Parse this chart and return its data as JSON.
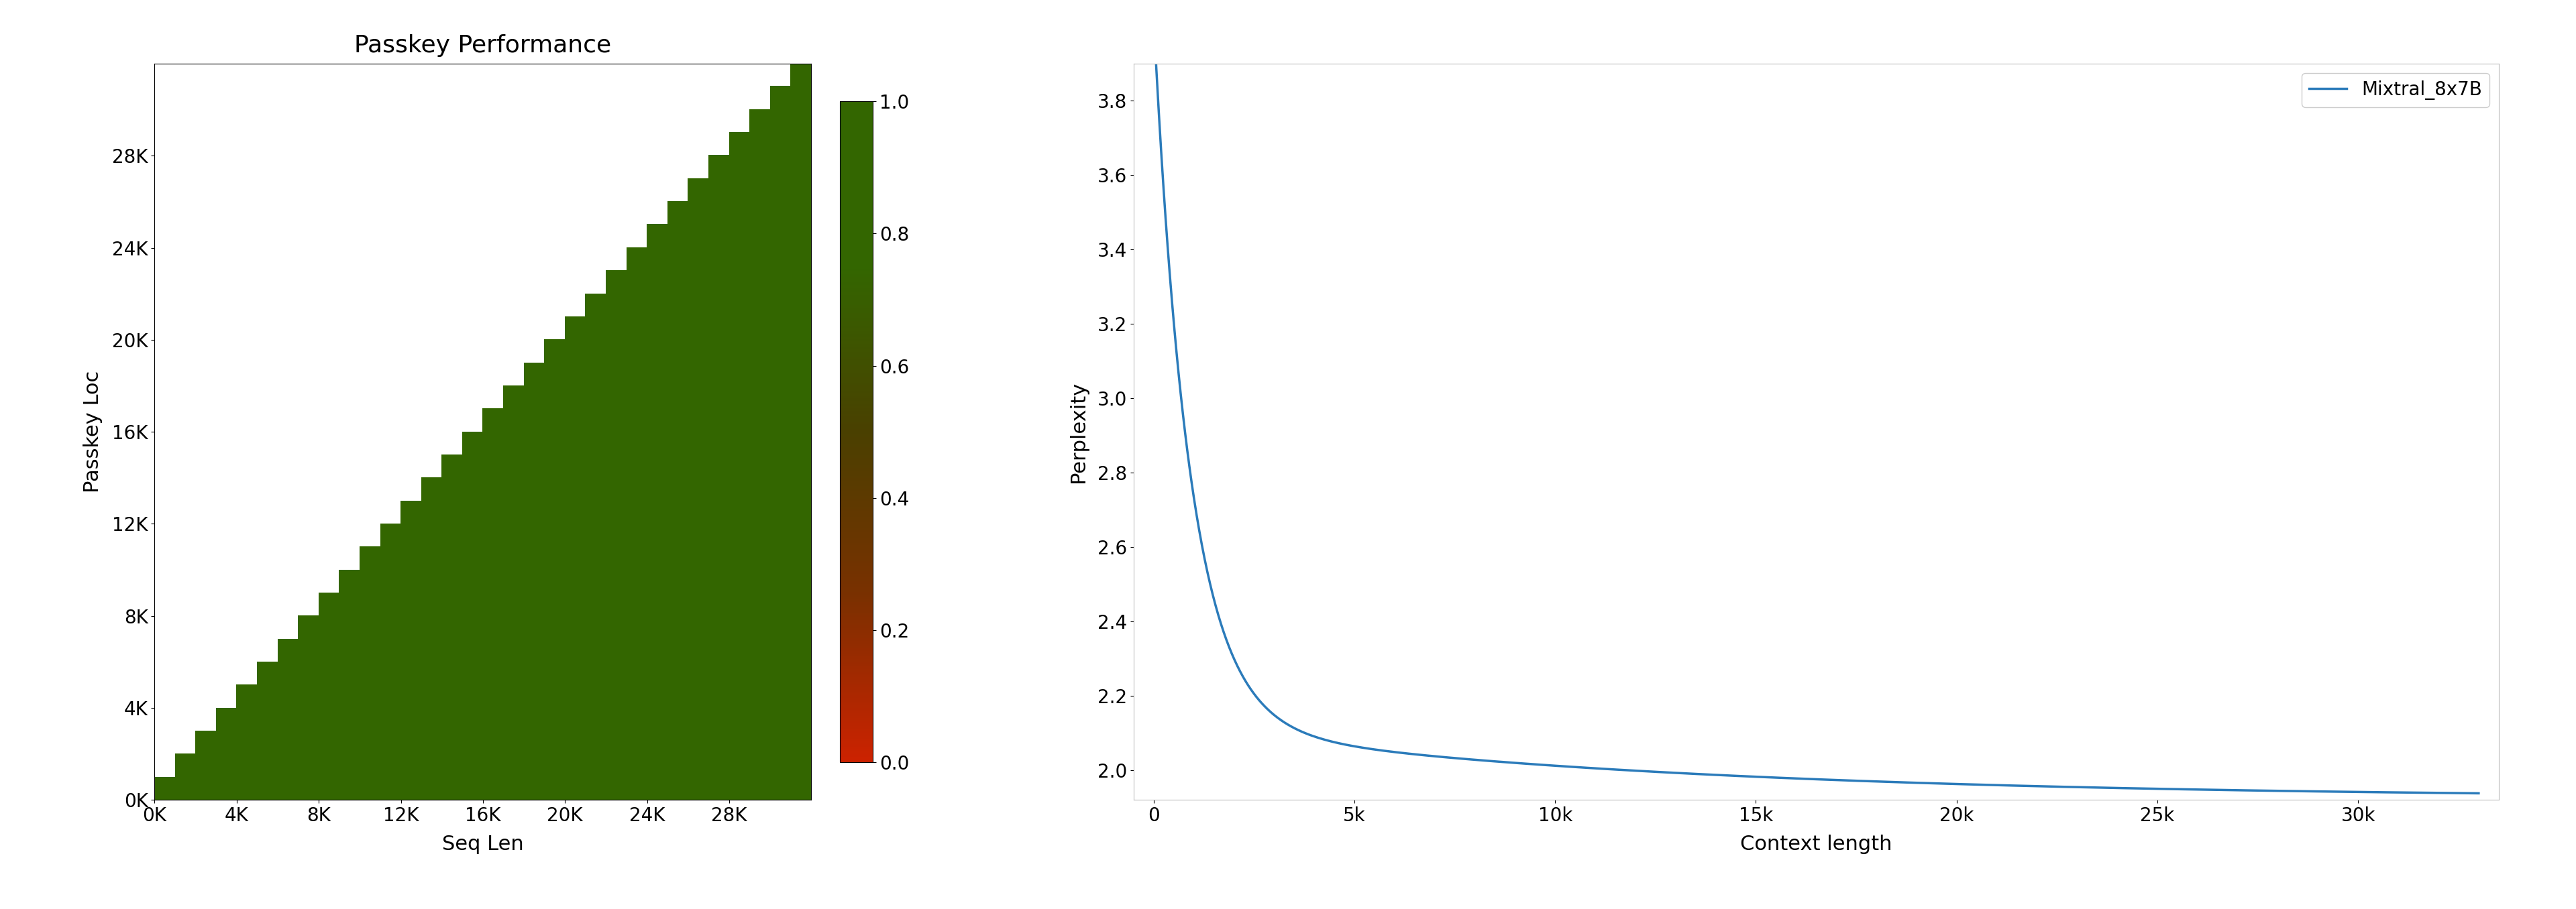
{
  "left_title": "Passkey Performance",
  "left_xlabel": "Seq Len",
  "left_ylabel": "Passkey Loc",
  "left_xticks": [
    0,
    4000,
    8000,
    12000,
    16000,
    20000,
    24000,
    28000
  ],
  "left_yticks": [
    0,
    4000,
    8000,
    12000,
    16000,
    20000,
    24000,
    28000
  ],
  "left_xlim": [
    0,
    32000
  ],
  "left_ylim": [
    0,
    32000
  ],
  "left_xtick_labels": [
    "0K",
    "4K",
    "8K",
    "12K",
    "16K",
    "20K",
    "24K",
    "28K"
  ],
  "left_ytick_labels": [
    "0K",
    "4K",
    "8K",
    "12K",
    "16K",
    "20K",
    "24K",
    "28K"
  ],
  "colorbar_ticks": [
    0.0,
    0.2,
    0.4,
    0.6,
    0.8,
    1.0
  ],
  "right_ylabel": "Perplexity",
  "right_xlabel": "Context length",
  "right_legend": "Mixtral_8x7B",
  "right_xticks": [
    0,
    5000,
    10000,
    15000,
    20000,
    25000,
    30000
  ],
  "right_xtick_labels": [
    "0",
    "5k",
    "10k",
    "15k",
    "20k",
    "25k",
    "30k"
  ],
  "right_yticks": [
    2.0,
    2.2,
    2.4,
    2.6,
    2.8,
    3.0,
    3.2,
    3.4,
    3.6,
    3.8
  ],
  "right_ylim": [
    1.92,
    3.9
  ],
  "right_xlim": [
    -500,
    33500
  ],
  "line_color": "#2b7bba",
  "background_color": "#ffffff",
  "title_fontsize": 26,
  "axis_label_fontsize": 22,
  "tick_fontsize": 20,
  "legend_fontsize": 20
}
